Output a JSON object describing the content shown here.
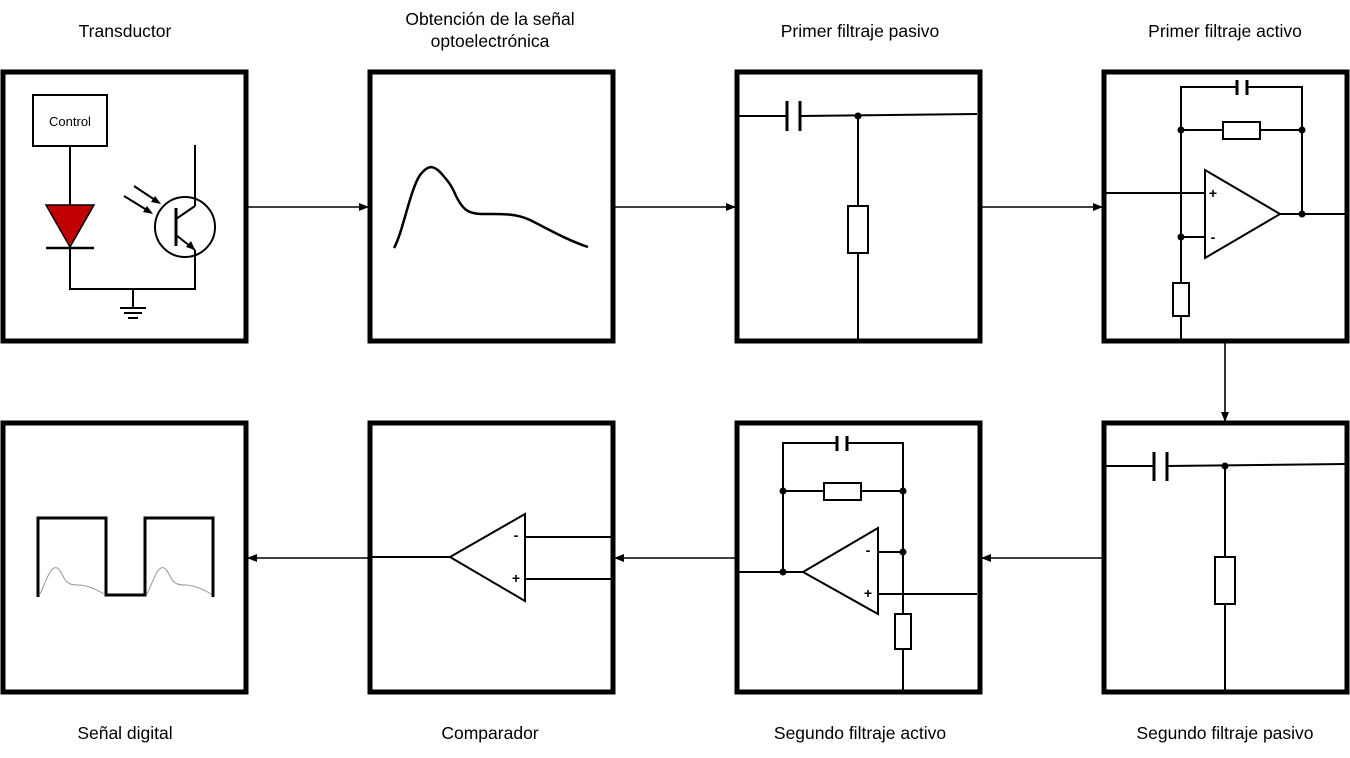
{
  "blocks": {
    "transductor": "Transductor",
    "obtencion_line1": "Obtención de la señal",
    "obtencion_line2": "optoelectrónica",
    "primer_filtraje_pasivo": "Primer filtraje pasivo",
    "primer_filtraje_activo": "Primer filtraje activo",
    "segundo_filtraje_pasivo": "Segundo filtraje pasivo",
    "segundo_filtraje_activo": "Segundo filtraje activo",
    "comparador": "Comparador",
    "senal_digital": "Señal digital"
  },
  "circuit": {
    "control_label": "Control",
    "plus_sign": "+",
    "minus_sign": "-"
  },
  "colors": {
    "led_fill": "#c00000",
    "line": "#000000"
  }
}
